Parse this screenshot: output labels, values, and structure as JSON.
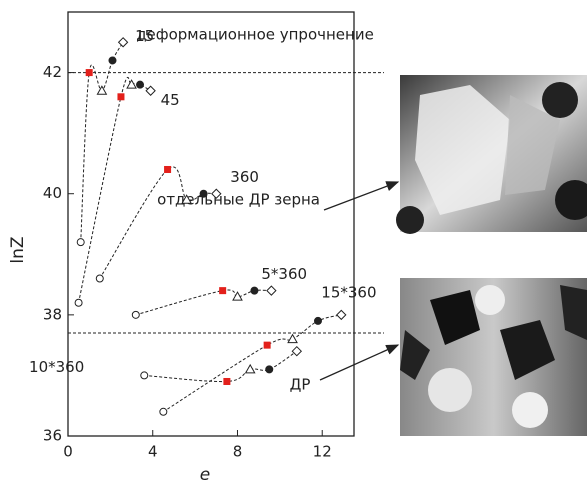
{
  "chart_data": {
    "type": "line",
    "x_label": "e",
    "y_label": "lnZ",
    "xlim": [
      0,
      13.5
    ],
    "ylim": [
      36,
      43
    ],
    "xticks": [
      0,
      4,
      8,
      12
    ],
    "yticks": [
      36,
      38,
      40,
      42
    ],
    "hlines": [
      42,
      37.7
    ],
    "highlight_color": "#e3201b",
    "series": [
      {
        "name": "15",
        "x": [
          0.6,
          1.0,
          1.6,
          2.1,
          2.6
        ],
        "values": [
          39.2,
          42.0,
          41.7,
          42.2,
          42.5
        ],
        "markers": [
          "circle-open",
          "square",
          "triangle",
          "circle",
          "diamond"
        ]
      },
      {
        "name": "45",
        "x": [
          0.5,
          2.5,
          3.0,
          3.4,
          3.9
        ],
        "values": [
          38.2,
          41.6,
          41.8,
          41.8,
          41.7
        ],
        "markers": [
          "circle-open",
          "square",
          "triangle",
          "circle",
          "diamond"
        ]
      },
      {
        "name": "360",
        "x": [
          1.5,
          4.7,
          5.6,
          6.4,
          7.0
        ],
        "values": [
          38.6,
          40.4,
          39.9,
          40.0,
          40.0
        ],
        "markers": [
          "circle-open",
          "square",
          "triangle",
          "circle",
          "diamond"
        ]
      },
      {
        "name": "5*360",
        "x": [
          3.2,
          7.3,
          8.0,
          8.8,
          9.6
        ],
        "values": [
          38.0,
          38.4,
          38.3,
          38.4,
          38.4
        ],
        "markers": [
          "circle-open",
          "square",
          "triangle",
          "circle",
          "diamond"
        ]
      },
      {
        "name": "10*360",
        "x": [
          3.6,
          7.5,
          8.6,
          9.5,
          10.8
        ],
        "values": [
          37.0,
          36.9,
          37.1,
          37.1,
          37.4
        ],
        "markers": [
          "circle-open",
          "square",
          "triangle",
          "circle",
          "diamond"
        ]
      },
      {
        "name": "15*360",
        "x": [
          4.5,
          9.4,
          10.6,
          11.8,
          12.9
        ],
        "values": [
          36.4,
          37.5,
          37.6,
          37.9,
          38.0
        ],
        "markers": [
          "circle-open",
          "square",
          "triangle",
          "circle",
          "diamond"
        ]
      }
    ],
    "annotations": [
      "деформационное упрочнение",
      "отдельные ДР зерна",
      "ДР"
    ]
  }
}
